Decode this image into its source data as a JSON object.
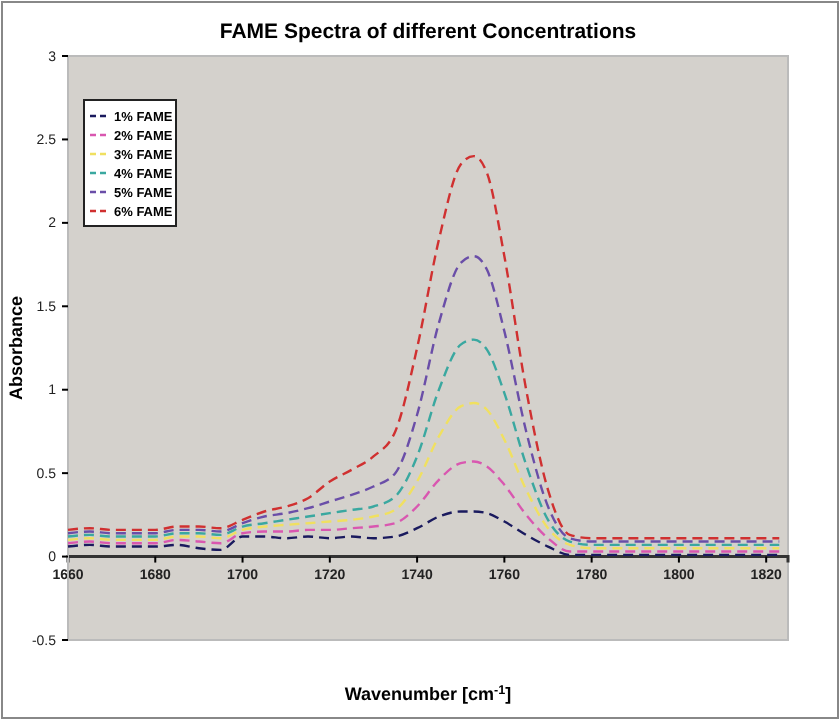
{
  "chart_data": {
    "type": "line",
    "title": "FAME Spectra of different Concentrations",
    "xlabel": "Wavenumber [cm$^{-1}$]",
    "ylabel": "Absorbance",
    "x": [
      1660,
      1665,
      1670,
      1675,
      1680,
      1685,
      1690,
      1695,
      1700,
      1705,
      1710,
      1715,
      1720,
      1725,
      1730,
      1735,
      1740,
      1745,
      1750,
      1753,
      1756,
      1760,
      1765,
      1770,
      1775,
      1780,
      1790,
      1800,
      1810,
      1823
    ],
    "series": [
      {
        "name": "1% FAME",
        "color": "#1a1a5e",
        "values": [
          0.06,
          0.07,
          0.06,
          0.06,
          0.06,
          0.07,
          0.05,
          0.04,
          0.12,
          0.12,
          0.11,
          0.12,
          0.11,
          0.12,
          0.11,
          0.12,
          0.17,
          0.24,
          0.27,
          0.27,
          0.26,
          0.21,
          0.13,
          0.06,
          0.01,
          0.01,
          0.01,
          0.01,
          0.01,
          0.01
        ]
      },
      {
        "name": "2% FAME",
        "color": "#d957b0",
        "values": [
          0.08,
          0.09,
          0.08,
          0.08,
          0.08,
          0.1,
          0.09,
          0.08,
          0.14,
          0.15,
          0.15,
          0.16,
          0.16,
          0.17,
          0.18,
          0.2,
          0.3,
          0.46,
          0.56,
          0.57,
          0.54,
          0.43,
          0.25,
          0.11,
          0.03,
          0.03,
          0.03,
          0.03,
          0.03,
          0.03
        ]
      },
      {
        "name": "3% FAME",
        "color": "#f0e060",
        "values": [
          0.1,
          0.11,
          0.1,
          0.1,
          0.1,
          0.12,
          0.12,
          0.11,
          0.16,
          0.18,
          0.19,
          0.2,
          0.21,
          0.22,
          0.24,
          0.28,
          0.45,
          0.72,
          0.9,
          0.92,
          0.88,
          0.7,
          0.4,
          0.17,
          0.07,
          0.05,
          0.05,
          0.05,
          0.05,
          0.05
        ]
      },
      {
        "name": "4% FAME",
        "color": "#3aa8a0",
        "values": [
          0.12,
          0.13,
          0.12,
          0.12,
          0.12,
          0.14,
          0.14,
          0.13,
          0.18,
          0.2,
          0.22,
          0.24,
          0.26,
          0.28,
          0.3,
          0.36,
          0.6,
          1.0,
          1.27,
          1.3,
          1.24,
          0.98,
          0.55,
          0.22,
          0.09,
          0.07,
          0.07,
          0.07,
          0.07,
          0.07
        ]
      },
      {
        "name": "5% FAME",
        "color": "#6a4ea8",
        "values": [
          0.14,
          0.15,
          0.14,
          0.14,
          0.14,
          0.16,
          0.16,
          0.15,
          0.2,
          0.24,
          0.26,
          0.29,
          0.33,
          0.37,
          0.42,
          0.5,
          0.85,
          1.4,
          1.76,
          1.8,
          1.72,
          1.35,
          0.75,
          0.3,
          0.11,
          0.09,
          0.09,
          0.09,
          0.09,
          0.09
        ]
      },
      {
        "name": "6% FAME",
        "color": "#d03030",
        "values": [
          0.16,
          0.17,
          0.16,
          0.16,
          0.16,
          0.18,
          0.18,
          0.17,
          0.22,
          0.27,
          0.3,
          0.35,
          0.45,
          0.52,
          0.6,
          0.75,
          1.25,
          1.9,
          2.35,
          2.4,
          2.3,
          1.8,
          1.0,
          0.4,
          0.13,
          0.11,
          0.11,
          0.11,
          0.11,
          0.11
        ]
      }
    ],
    "xlim": [
      1660,
      1825
    ],
    "xticks": [
      1660,
      1680,
      1700,
      1720,
      1740,
      1760,
      1780,
      1800,
      1820
    ],
    "ylim": [
      -0.5,
      3
    ],
    "yticks": [
      -0.5,
      0,
      0.5,
      1,
      1.5,
      2,
      2.5,
      3
    ],
    "legend": "top left",
    "line_style": "dashed",
    "marker": "none",
    "grid": false
  }
}
